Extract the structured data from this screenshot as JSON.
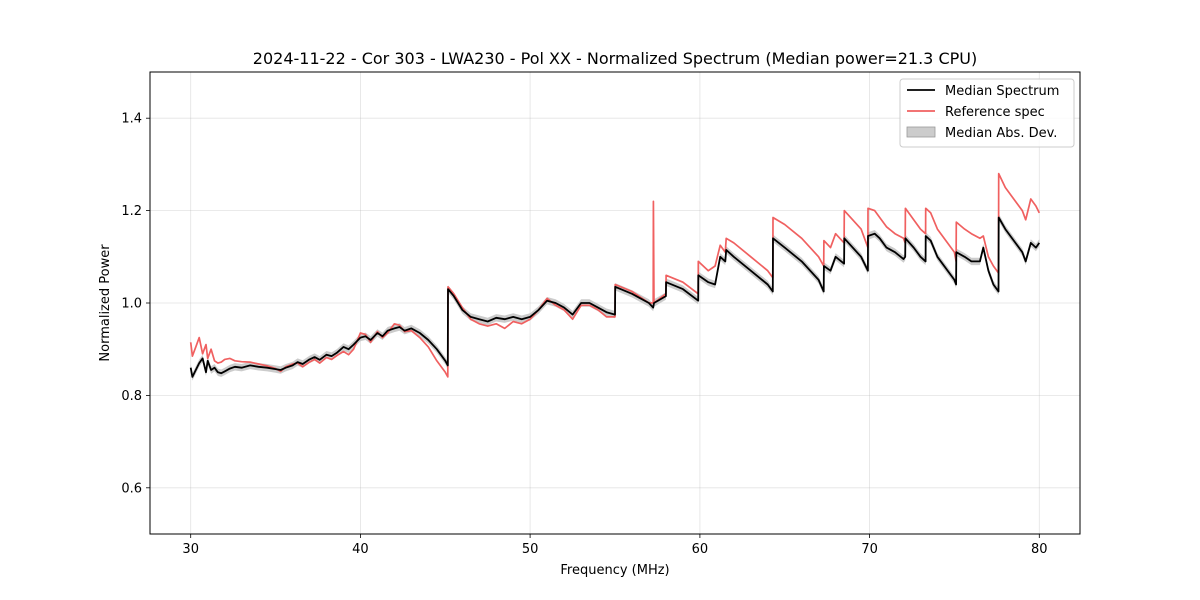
{
  "chart_data": {
    "type": "line",
    "title": "2024-11-22 - Cor 303 - LWA230 - Pol XX - Normalized Spectrum (Median power=21.3 CPU)",
    "xlabel": "Frequency (MHz)",
    "ylabel": "Normalized Power",
    "xlim": [
      27.6,
      82.4
    ],
    "ylim": [
      0.5,
      1.5
    ],
    "xticks": [
      30,
      40,
      50,
      60,
      70,
      80
    ],
    "yticks": [
      0.6,
      0.8,
      1.0,
      1.2,
      1.4
    ],
    "xtick_labels": [
      "30",
      "40",
      "50",
      "60",
      "70",
      "80"
    ],
    "ytick_labels": [
      "0.6",
      "0.8",
      "1.0",
      "1.2",
      "1.4"
    ],
    "grid": true,
    "legend_position": "top-right",
    "legend": [
      "Median Spectrum",
      "Reference spec",
      "Median Abs. Dev."
    ],
    "mad_half_width": 0.008,
    "series": [
      {
        "name": "Median Spectrum",
        "color": "#000000",
        "x": [
          30.0,
          30.1,
          30.3,
          30.5,
          30.7,
          30.9,
          31.0,
          31.2,
          31.4,
          31.6,
          31.8,
          32.0,
          32.3,
          32.6,
          33.0,
          33.5,
          34.0,
          34.5,
          35.0,
          35.3,
          35.6,
          36.0,
          36.3,
          36.6,
          37.0,
          37.3,
          37.6,
          38.0,
          38.3,
          38.6,
          39.0,
          39.3,
          39.6,
          40.0,
          40.3,
          40.6,
          41.0,
          41.3,
          41.6,
          42.0,
          42.3,
          42.6,
          43.0,
          43.5,
          44.0,
          44.5,
          45.0,
          45.15,
          45.16,
          45.5,
          46.0,
          46.5,
          47.0,
          47.5,
          48.0,
          48.5,
          49.0,
          49.5,
          50.0,
          50.5,
          51.0,
          51.5,
          52.0,
          52.5,
          53.0,
          53.5,
          54.0,
          54.5,
          55.0,
          55.01,
          56.0,
          57.0,
          57.25,
          57.3,
          58.0,
          58.01,
          59.0,
          59.9,
          59.91,
          60.5,
          60.9,
          61.2,
          61.5,
          61.55,
          62.0,
          63.0,
          64.0,
          64.3,
          64.31,
          65.0,
          66.0,
          67.0,
          67.3,
          67.31,
          67.7,
          68.0,
          68.5,
          68.51,
          69.5,
          69.9,
          69.91,
          70.3,
          70.6,
          71.0,
          71.5,
          72.0,
          72.1,
          72.11,
          72.6,
          73.0,
          73.3,
          73.31,
          73.6,
          74.0,
          75.0,
          75.1,
          75.11,
          75.6,
          76.0,
          76.5,
          76.7,
          77.0,
          77.3,
          77.6,
          77.61,
          78.0,
          79.0,
          79.2,
          79.5,
          79.8,
          80.0
        ],
        "values": [
          0.86,
          0.84,
          0.855,
          0.87,
          0.88,
          0.85,
          0.875,
          0.855,
          0.86,
          0.85,
          0.848,
          0.852,
          0.858,
          0.862,
          0.86,
          0.865,
          0.862,
          0.86,
          0.857,
          0.855,
          0.86,
          0.865,
          0.872,
          0.868,
          0.878,
          0.883,
          0.877,
          0.888,
          0.885,
          0.892,
          0.905,
          0.9,
          0.91,
          0.925,
          0.928,
          0.92,
          0.935,
          0.928,
          0.94,
          0.945,
          0.948,
          0.94,
          0.945,
          0.935,
          0.92,
          0.9,
          0.875,
          0.865,
          1.03,
          1.015,
          0.985,
          0.97,
          0.965,
          0.96,
          0.968,
          0.965,
          0.97,
          0.965,
          0.97,
          0.985,
          1.005,
          1.0,
          0.99,
          0.975,
          1.0,
          1.0,
          0.99,
          0.98,
          0.975,
          1.035,
          1.02,
          1.0,
          0.99,
          1.0,
          1.015,
          1.045,
          1.03,
          1.005,
          1.06,
          1.045,
          1.04,
          1.1,
          1.09,
          1.115,
          1.1,
          1.07,
          1.04,
          1.025,
          1.14,
          1.12,
          1.09,
          1.05,
          1.025,
          1.08,
          1.07,
          1.1,
          1.085,
          1.14,
          1.1,
          1.07,
          1.145,
          1.15,
          1.14,
          1.12,
          1.11,
          1.095,
          1.1,
          1.14,
          1.12,
          1.1,
          1.09,
          1.145,
          1.135,
          1.1,
          1.05,
          1.04,
          1.11,
          1.1,
          1.09,
          1.09,
          1.12,
          1.07,
          1.04,
          1.025,
          1.185,
          1.16,
          1.11,
          1.09,
          1.13,
          1.12,
          1.13
        ]
      },
      {
        "name": "Reference spec",
        "color": "#f06060",
        "x": [
          30.0,
          30.1,
          30.3,
          30.5,
          30.7,
          30.9,
          31.0,
          31.2,
          31.4,
          31.6,
          31.8,
          32.0,
          32.3,
          32.6,
          33.0,
          33.5,
          34.0,
          34.5,
          35.0,
          35.3,
          35.6,
          36.0,
          36.3,
          36.6,
          37.0,
          37.3,
          37.6,
          38.0,
          38.3,
          38.6,
          39.0,
          39.3,
          39.6,
          40.0,
          40.3,
          40.6,
          41.0,
          41.3,
          41.6,
          42.0,
          42.3,
          42.6,
          43.0,
          43.5,
          44.0,
          44.5,
          45.0,
          45.15,
          45.16,
          45.5,
          46.0,
          46.5,
          47.0,
          47.5,
          48.0,
          48.5,
          49.0,
          49.5,
          50.0,
          50.5,
          51.0,
          51.5,
          52.0,
          52.5,
          53.0,
          53.5,
          54.0,
          54.5,
          55.0,
          55.01,
          56.0,
          57.0,
          57.25,
          57.26,
          57.3,
          58.0,
          58.01,
          59.0,
          59.9,
          59.91,
          60.5,
          60.9,
          61.2,
          61.5,
          61.55,
          62.0,
          63.0,
          64.0,
          64.3,
          64.31,
          65.0,
          66.0,
          67.0,
          67.3,
          67.31,
          67.7,
          68.0,
          68.5,
          68.51,
          69.5,
          69.9,
          69.91,
          70.3,
          70.6,
          71.0,
          71.5,
          72.0,
          72.1,
          72.11,
          72.6,
          73.0,
          73.3,
          73.31,
          73.6,
          74.0,
          75.0,
          75.1,
          75.11,
          75.6,
          76.0,
          76.5,
          76.7,
          77.0,
          77.3,
          77.6,
          77.61,
          78.0,
          79.0,
          79.2,
          79.5,
          79.8,
          80.0
        ],
        "values": [
          0.915,
          0.885,
          0.905,
          0.925,
          0.89,
          0.91,
          0.88,
          0.9,
          0.875,
          0.87,
          0.872,
          0.878,
          0.88,
          0.875,
          0.873,
          0.872,
          0.868,
          0.864,
          0.858,
          0.852,
          0.862,
          0.868,
          0.87,
          0.862,
          0.872,
          0.878,
          0.87,
          0.882,
          0.878,
          0.886,
          0.895,
          0.888,
          0.9,
          0.935,
          0.932,
          0.915,
          0.938,
          0.925,
          0.935,
          0.955,
          0.952,
          0.938,
          0.94,
          0.925,
          0.905,
          0.875,
          0.85,
          0.84,
          1.035,
          1.02,
          0.99,
          0.965,
          0.955,
          0.95,
          0.955,
          0.945,
          0.96,
          0.955,
          0.965,
          0.985,
          1.01,
          0.995,
          0.985,
          0.965,
          0.995,
          0.995,
          0.985,
          0.97,
          0.97,
          1.04,
          1.025,
          1.0,
          1.0,
          1.22,
          1.0,
          1.02,
          1.06,
          1.045,
          1.02,
          1.09,
          1.07,
          1.08,
          1.125,
          1.11,
          1.14,
          1.13,
          1.1,
          1.07,
          1.055,
          1.185,
          1.17,
          1.14,
          1.1,
          1.08,
          1.135,
          1.12,
          1.15,
          1.13,
          1.2,
          1.16,
          1.12,
          1.205,
          1.2,
          1.185,
          1.165,
          1.15,
          1.14,
          1.13,
          1.205,
          1.18,
          1.16,
          1.15,
          1.205,
          1.195,
          1.16,
          1.11,
          1.09,
          1.175,
          1.16,
          1.15,
          1.14,
          1.145,
          1.1,
          1.08,
          1.065,
          1.28,
          1.25,
          1.2,
          1.18,
          1.225,
          1.21,
          1.195
        ]
      }
    ]
  }
}
